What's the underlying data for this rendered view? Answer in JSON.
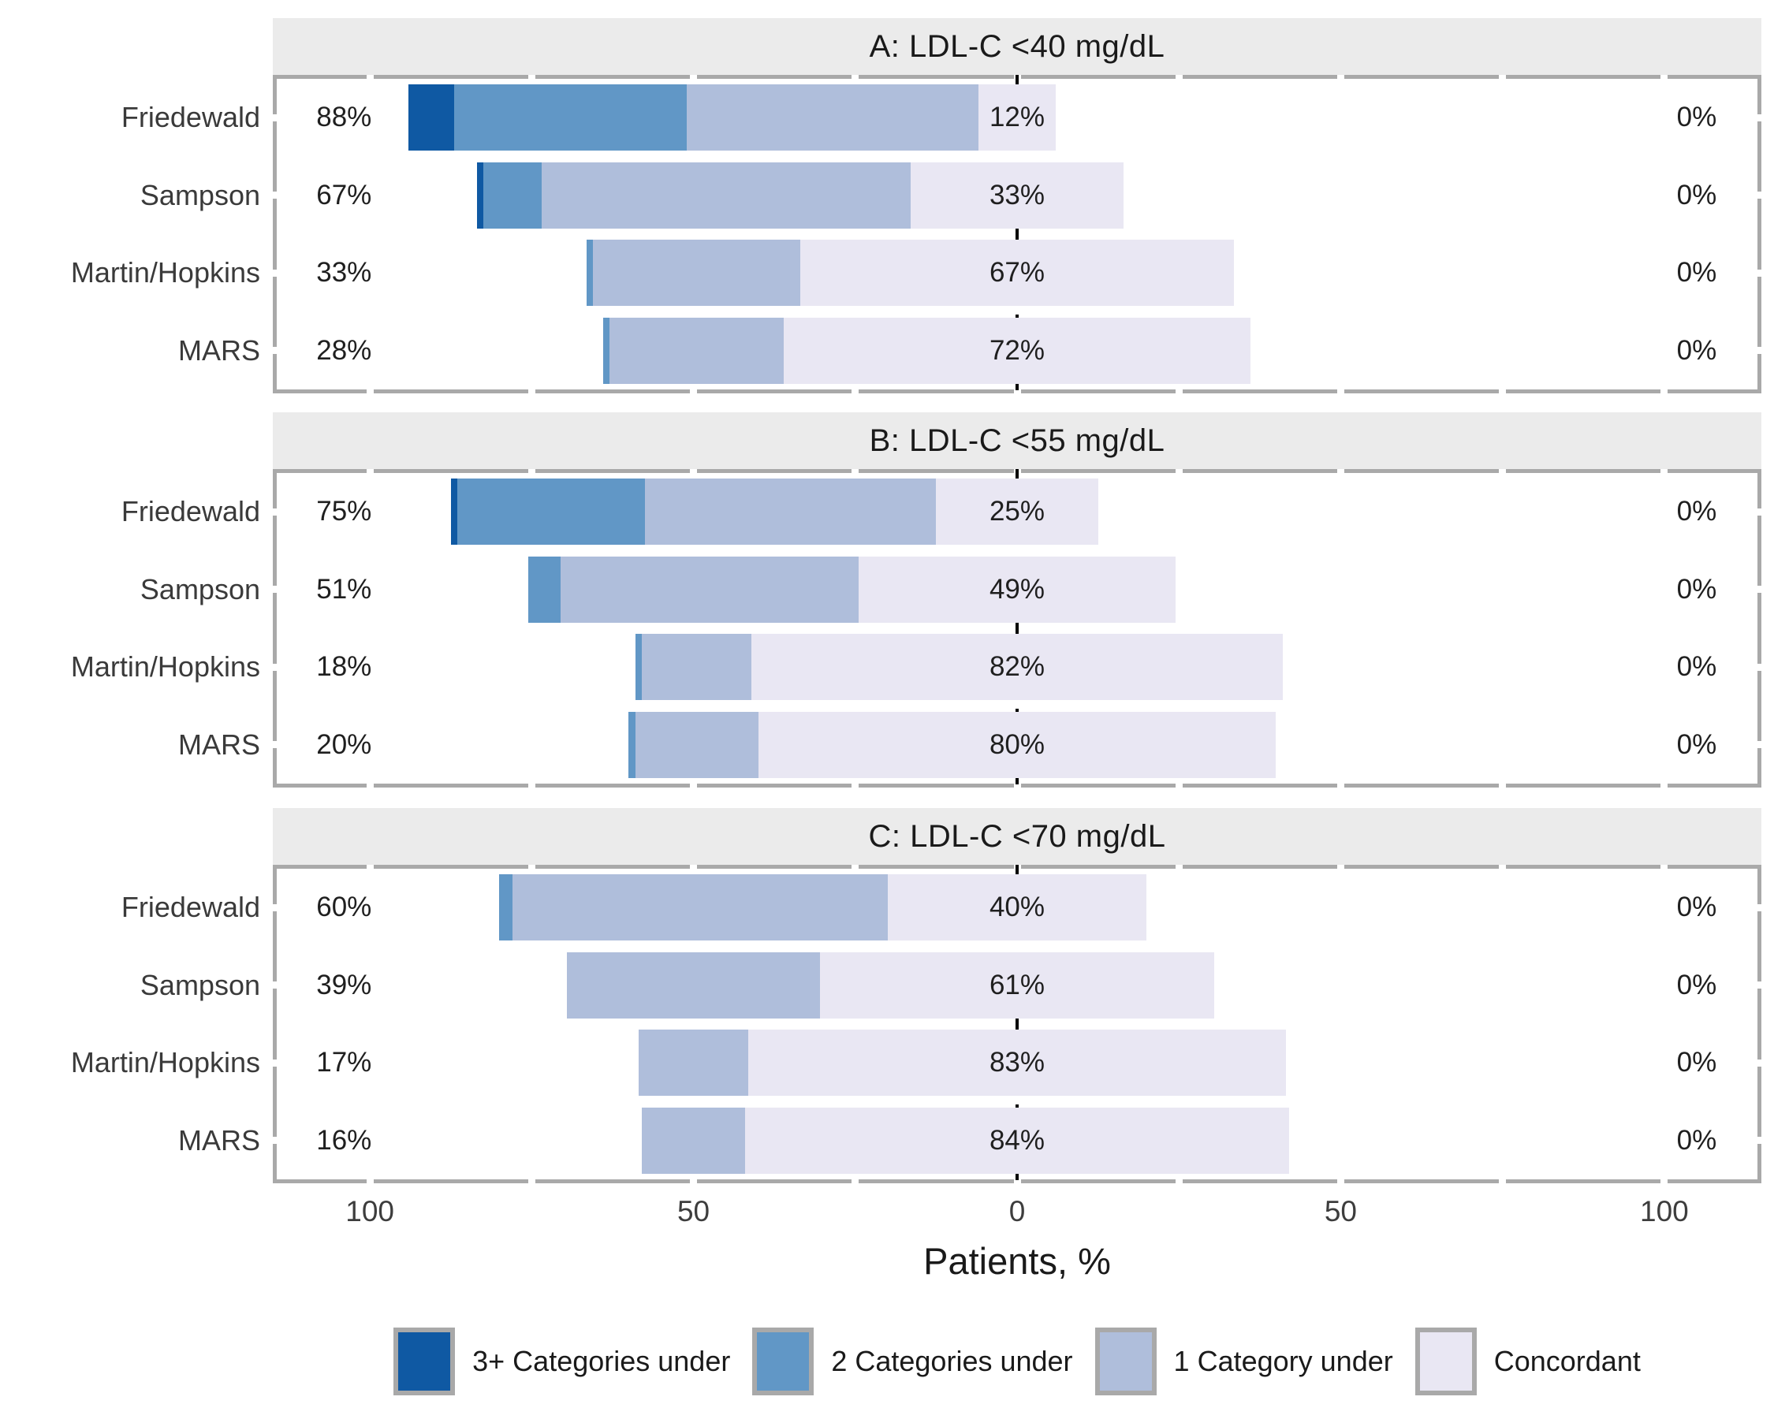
{
  "chart_data": {
    "type": "bar",
    "variant": "diverging-stacked-horizontal",
    "xlabel": "Patients, %",
    "xlim": [
      -115,
      115
    ],
    "x_tick_labels": [
      "100",
      "50",
      "0",
      "50",
      "100"
    ],
    "x_tick_values": [
      -100,
      -50,
      0,
      50,
      100
    ],
    "minor_tick_values": [
      -100,
      -75,
      -50,
      -25,
      0,
      25,
      50,
      75,
      100
    ],
    "zero_reference_line": "dashed",
    "legend_position": "bottom",
    "categories_legend": [
      "3+ Categories under",
      "2 Categories under",
      "1 Category under",
      "Concordant"
    ],
    "series_colors": [
      "#0F59A3",
      "#6197C6",
      "#AFBEDB",
      "#E9E7F3"
    ],
    "panels": [
      {
        "title": "A: LDL-C <40 mg/dL",
        "rows": [
          {
            "method": "Friedewald",
            "values": {
              "under3": 7,
              "under2": 36,
              "under1": 45,
              "concordant": 12,
              "over": 0
            },
            "labels": {
              "left": "88%",
              "center": "12%",
              "right": "0%"
            }
          },
          {
            "method": "Sampson",
            "values": {
              "under3": 1,
              "under2": 9,
              "under1": 57,
              "concordant": 33,
              "over": 0
            },
            "labels": {
              "left": "67%",
              "center": "33%",
              "right": "0%"
            }
          },
          {
            "method": "Martin/Hopkins",
            "values": {
              "under3": 0,
              "under2": 1,
              "under1": 32,
              "concordant": 67,
              "over": 0
            },
            "labels": {
              "left": "33%",
              "center": "67%",
              "right": "0%"
            }
          },
          {
            "method": "MARS",
            "values": {
              "under3": 0,
              "under2": 1,
              "under1": 27,
              "concordant": 72,
              "over": 0
            },
            "labels": {
              "left": "28%",
              "center": "72%",
              "right": "0%"
            }
          }
        ]
      },
      {
        "title": "B: LDL-C <55 mg/dL",
        "rows": [
          {
            "method": "Friedewald",
            "values": {
              "under3": 1,
              "under2": 29,
              "under1": 45,
              "concordant": 25,
              "over": 0
            },
            "labels": {
              "left": "75%",
              "center": "25%",
              "right": "0%"
            }
          },
          {
            "method": "Sampson",
            "values": {
              "under3": 0,
              "under2": 5,
              "under1": 46,
              "concordant": 49,
              "over": 0
            },
            "labels": {
              "left": "51%",
              "center": "49%",
              "right": "0%"
            }
          },
          {
            "method": "Martin/Hopkins",
            "values": {
              "under3": 0,
              "under2": 1,
              "under1": 17,
              "concordant": 82,
              "over": 0
            },
            "labels": {
              "left": "18%",
              "center": "82%",
              "right": "0%"
            }
          },
          {
            "method": "MARS",
            "values": {
              "under3": 0,
              "under2": 1,
              "under1": 19,
              "concordant": 80,
              "over": 0
            },
            "labels": {
              "left": "20%",
              "center": "80%",
              "right": "0%"
            }
          }
        ]
      },
      {
        "title": "C: LDL-C <70 mg/dL",
        "rows": [
          {
            "method": "Friedewald",
            "values": {
              "under3": 0,
              "under2": 2,
              "under1": 58,
              "concordant": 40,
              "over": 0
            },
            "labels": {
              "left": "60%",
              "center": "40%",
              "right": "0%"
            }
          },
          {
            "method": "Sampson",
            "values": {
              "under3": 0,
              "under2": 0,
              "under1": 39,
              "concordant": 61,
              "over": 0
            },
            "labels": {
              "left": "39%",
              "center": "61%",
              "right": "0%"
            }
          },
          {
            "method": "Martin/Hopkins",
            "values": {
              "under3": 0,
              "under2": 0,
              "under1": 17,
              "concordant": 83,
              "over": 0
            },
            "labels": {
              "left": "17%",
              "center": "83%",
              "right": "0%"
            }
          },
          {
            "method": "MARS",
            "values": {
              "under3": 0,
              "under2": 0,
              "under1": 16,
              "concordant": 84,
              "over": 0
            },
            "labels": {
              "left": "16%",
              "center": "84%",
              "right": "0%"
            }
          }
        ]
      }
    ]
  },
  "colors": {
    "background": "#FFFFFF",
    "strip_background": "#EBEBEB",
    "panel_border": "#A9A9A9",
    "zero_line": "#000000",
    "method_label_text": "#3A3A3A",
    "value_label_text": "#1F1F1F",
    "axis_tick_text": "#3D3D3D",
    "title_text": "#1A1A1A"
  }
}
